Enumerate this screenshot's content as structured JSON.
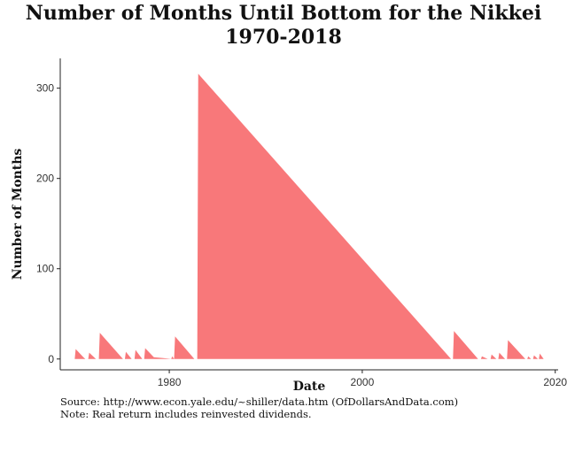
{
  "chart_data": {
    "type": "area",
    "title_lines": [
      "Number of Months Until Bottom for the Nikkei",
      "1970-2018"
    ],
    "xlabel": "Date",
    "ylabel": "Number of Months",
    "xlim": [
      1968.7,
      2020.3
    ],
    "ylim": [
      -12,
      333
    ],
    "x_ticks": [
      1980,
      2000,
      2020
    ],
    "y_ticks": [
      0,
      100,
      200,
      300
    ],
    "grid": false,
    "color": "#F8787A",
    "series": [
      {
        "values": [
          {
            "x": 1970.2,
            "y": 0
          },
          {
            "x": 1970.3,
            "y": 11
          },
          {
            "x": 1971.1,
            "y": 2
          },
          {
            "x": 1971.3,
            "y": 0
          },
          {
            "x": 1971.6,
            "y": 0
          },
          {
            "x": 1971.7,
            "y": 7
          },
          {
            "x": 1972.4,
            "y": 0
          },
          {
            "x": 1972.7,
            "y": 0
          },
          {
            "x": 1972.8,
            "y": 29
          },
          {
            "x": 1975.2,
            "y": 0
          },
          {
            "x": 1975.4,
            "y": 0
          },
          {
            "x": 1975.5,
            "y": 8
          },
          {
            "x": 1976.1,
            "y": 0
          },
          {
            "x": 1976.4,
            "y": 0
          },
          {
            "x": 1976.5,
            "y": 10
          },
          {
            "x": 1977.2,
            "y": 0
          },
          {
            "x": 1977.4,
            "y": 0
          },
          {
            "x": 1977.5,
            "y": 12
          },
          {
            "x": 1978.4,
            "y": 2
          },
          {
            "x": 1979.4,
            "y": 1
          },
          {
            "x": 1980.2,
            "y": 0
          },
          {
            "x": 1980.3,
            "y": 3
          },
          {
            "x": 1980.5,
            "y": 0
          },
          {
            "x": 1980.6,
            "y": 25
          },
          {
            "x": 1982.6,
            "y": 0
          },
          {
            "x": 1982.9,
            "y": 0
          },
          {
            "x": 1983.0,
            "y": 316
          },
          {
            "x": 2009.2,
            "y": 0
          },
          {
            "x": 2009.4,
            "y": 0
          },
          {
            "x": 2009.5,
            "y": 31
          },
          {
            "x": 2012.0,
            "y": 0
          },
          {
            "x": 2012.3,
            "y": 0
          },
          {
            "x": 2012.4,
            "y": 3
          },
          {
            "x": 2013.0,
            "y": 0
          },
          {
            "x": 2013.3,
            "y": 0
          },
          {
            "x": 2013.4,
            "y": 5
          },
          {
            "x": 2013.9,
            "y": 0
          },
          {
            "x": 2014.1,
            "y": 0
          },
          {
            "x": 2014.2,
            "y": 7
          },
          {
            "x": 2014.8,
            "y": 0
          },
          {
            "x": 2015.0,
            "y": 0
          },
          {
            "x": 2015.1,
            "y": 21
          },
          {
            "x": 2016.9,
            "y": 0
          },
          {
            "x": 2017.1,
            "y": 0
          },
          {
            "x": 2017.2,
            "y": 3
          },
          {
            "x": 2017.5,
            "y": 0
          },
          {
            "x": 2017.7,
            "y": 0
          },
          {
            "x": 2017.8,
            "y": 4
          },
          {
            "x": 2018.2,
            "y": 0
          },
          {
            "x": 2018.3,
            "y": 0
          },
          {
            "x": 2018.4,
            "y": 6
          },
          {
            "x": 2018.8,
            "y": 0
          }
        ]
      }
    ]
  },
  "notes": {
    "source": "Source:  http://www.econ.yale.edu/~shiller/data.htm (OfDollarsAndData.com)",
    "note": "Note:  Real return includes reinvested dividends."
  }
}
